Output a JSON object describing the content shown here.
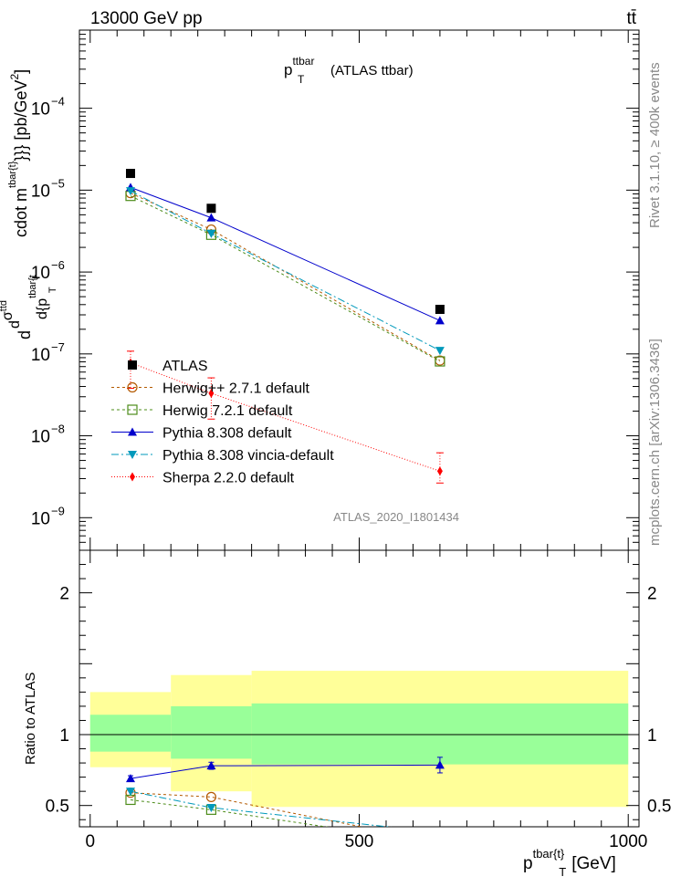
{
  "header": {
    "left": "13000 GeV pp",
    "right": "tt̄"
  },
  "plot_title": {
    "main": "p",
    "sup": "ttbar",
    "sub": "T",
    "rest": "(ATLAS ttbar)"
  },
  "side_labels": {
    "rivet": "Rivet 3.1.10, ≥ 400k events",
    "mcplots": "mcplots.cern.ch [arXiv:1306.3436]"
  },
  "watermark": "ATLAS_2020_I1801434",
  "ylabel_main": {
    "a": "d",
    "b": "d",
    "c": "σ",
    "d": "ttd",
    "e": "{p",
    "f": "tbar{t",
    "g": "T",
    "h": "cdot m",
    "i": "tbar{t}",
    "j": "}}} [pb/GeV",
    "k": "]"
  },
  "ylabel_ratio": "Ratio to ATLAS",
  "xlabel": {
    "main": "p",
    "sup": "tbar{t}",
    "sub": "T",
    "unit": "[GeV]"
  },
  "colors": {
    "atlas": "#000000",
    "herwigpp": "#b35900",
    "herwig7": "#4d8c1a",
    "pythia": "#0000cc",
    "vincia": "#0099bb",
    "sherpa": "#ff0000",
    "band_inner": "#99ff99",
    "band_outer": "#ffff99"
  },
  "chart_data": [
    {
      "type": "line",
      "title": "p_T^ttbar (ATLAS ttbar)",
      "xlabel": "p_T^{tbar{t}} [GeV]",
      "ylabel": "d^2σ^ttd / d^2{p_T^tbar{t} cdot m^tbar{t}}} [pb/GeV^2]",
      "log_y": true,
      "xlim": [
        -20,
        1020
      ],
      "ylim": [
        4e-10,
        0.0009
      ],
      "x_tick_labels": [
        "0",
        "500",
        "1000"
      ],
      "y_tick_labels": [
        "10^-9",
        "10^-8",
        "10^-7",
        "10^-6",
        "10^-5",
        "10^-4"
      ],
      "legend_position": "lower-left",
      "x": [
        75,
        225,
        650
      ],
      "series": [
        {
          "name": "ATLAS",
          "marker": "square",
          "values": [
            1.6e-05,
            6e-06,
            3.5e-07
          ]
        },
        {
          "name": "Herwig++ 2.7.1 default",
          "marker": "open-circle",
          "values": [
            9.2e-06,
            3.3e-06,
            8.3e-08
          ]
        },
        {
          "name": "Herwig 7.2.1 default",
          "marker": "open-square",
          "values": [
            8.5e-06,
            2.85e-06,
            8.1e-08
          ]
        },
        {
          "name": "Pythia 8.308 default",
          "marker": "triangle-up",
          "values": [
            1.08e-05,
            4.6e-06,
            2.55e-07
          ]
        },
        {
          "name": "Pythia 8.308 vincia-default",
          "marker": "triangle-down",
          "values": [
            9.8e-06,
            2.95e-06,
            1.1e-07
          ]
        },
        {
          "name": "Sherpa 2.2.0 default",
          "marker": "diamond",
          "values": [
            7.8e-08,
            3.3e-08,
            3.7e-09
          ],
          "err_low": [
            3.8e-08,
            1.6e-08,
            2.65e-09
          ],
          "err_high": [
            1.08e-07,
            5.1e-08,
            6.2e-09
          ]
        }
      ]
    },
    {
      "type": "line",
      "ylabel": "Ratio to ATLAS",
      "xlim": [
        -20,
        1020
      ],
      "ylim": [
        0.35,
        2.3
      ],
      "y_tick_labels": [
        "0.5",
        "1",
        "2"
      ],
      "x": [
        75,
        225,
        650
      ],
      "bands": [
        {
          "x_from": 0,
          "x_to": 150,
          "inner": [
            0.88,
            1.14
          ],
          "outer": [
            0.77,
            1.3
          ]
        },
        {
          "x_from": 150,
          "x_to": 300,
          "inner": [
            0.83,
            1.2
          ],
          "outer": [
            0.6,
            1.42
          ]
        },
        {
          "x_from": 300,
          "x_to": 1000,
          "inner": [
            0.79,
            1.22
          ],
          "outer": [
            0.49,
            1.45
          ]
        }
      ],
      "series": [
        {
          "name": "Herwig++ 2.7.1 default",
          "values": [
            0.59,
            0.56,
            0.24
          ]
        },
        {
          "name": "Herwig 7.2.1 default",
          "values": [
            0.54,
            0.47,
            0.23
          ]
        },
        {
          "name": "Pythia 8.308 default",
          "values": [
            0.69,
            0.78,
            0.785
          ],
          "err": [
            0.02,
            0.025,
            0.055
          ]
        },
        {
          "name": "Pythia 8.308 vincia-default",
          "values": [
            0.6,
            0.485,
            0.31
          ]
        }
      ]
    }
  ]
}
